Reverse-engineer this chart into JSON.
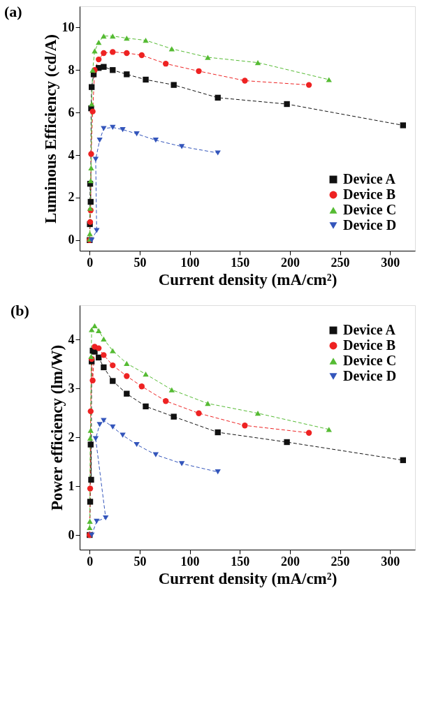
{
  "chart_data": [
    {
      "type": "line",
      "title": "(a)",
      "xlabel": "Current density (mA/cm²)",
      "ylabel": "Luminous Efficiency (cd/A)",
      "xlim": [
        -10,
        325
      ],
      "ylim": [
        -0.5,
        11
      ],
      "xticks": [
        0,
        50,
        100,
        150,
        200,
        250,
        300
      ],
      "yticks": [
        0,
        2,
        4,
        6,
        8,
        10
      ],
      "grid": false,
      "legend": "bottom right",
      "line_style": "dashed",
      "series": [
        {
          "name": "Device A",
          "color": "#111111",
          "marker": "square",
          "x": [
            0,
            0.2,
            0.5,
            1,
            1.5,
            2,
            4,
            9,
            14,
            23,
            37,
            56,
            84,
            128,
            197,
            313
          ],
          "values": [
            0,
            0.75,
            2.65,
            1.8,
            6.2,
            7.2,
            7.8,
            8.1,
            8.15,
            8.0,
            7.8,
            7.55,
            7.3,
            6.7,
            6.4,
            5.4
          ]
        },
        {
          "name": "Device B",
          "color": "#ee2222",
          "marker": "circle",
          "x": [
            0,
            0.5,
            1,
            1.5,
            3,
            5,
            9,
            14,
            23,
            37,
            52,
            76,
            109,
            155,
            219
          ],
          "values": [
            0,
            0.85,
            1.4,
            4.05,
            6.05,
            8.0,
            8.5,
            8.8,
            8.85,
            8.8,
            8.7,
            8.3,
            7.95,
            7.5,
            7.3
          ]
        },
        {
          "name": "Device C",
          "color": "#55bb33",
          "marker": "triangle-up",
          "x": [
            0,
            0.2,
            0.5,
            1,
            1.5,
            2,
            3,
            5,
            9,
            14,
            23,
            37,
            56,
            82,
            118,
            168,
            239
          ],
          "values": [
            0.05,
            0.3,
            1.5,
            2.8,
            3.4,
            6.4,
            8.0,
            8.9,
            9.3,
            9.6,
            9.6,
            9.5,
            9.4,
            9.0,
            8.6,
            8.35,
            7.55
          ]
        },
        {
          "name": "Device D",
          "color": "#3355bb",
          "marker": "triangle-down",
          "x": [
            2,
            7,
            6,
            10,
            14,
            23,
            33,
            47,
            66,
            92,
            128
          ],
          "values": [
            0,
            0.45,
            3.8,
            4.7,
            5.25,
            5.3,
            5.2,
            5.0,
            4.7,
            4.4,
            4.1
          ]
        }
      ]
    },
    {
      "type": "line",
      "title": "(b)",
      "xlabel": "Current density (mA/cm²)",
      "ylabel": "Power efficiency (lm/W)",
      "xlim": [
        -10,
        325
      ],
      "ylim": [
        -0.3,
        4.7
      ],
      "xticks": [
        0,
        50,
        100,
        150,
        200,
        250,
        300
      ],
      "yticks": [
        0,
        1,
        2,
        3,
        4
      ],
      "grid": false,
      "legend": "top right",
      "line_style": "dashed",
      "series": [
        {
          "name": "Device A",
          "color": "#111111",
          "marker": "square",
          "x": [
            0,
            0.5,
            1,
            1.5,
            2,
            3,
            5,
            9,
            14,
            23,
            37,
            56,
            84,
            128,
            197,
            313
          ],
          "values": [
            0,
            0.68,
            1.85,
            1.13,
            3.55,
            3.77,
            3.75,
            3.63,
            3.43,
            3.15,
            2.89,
            2.63,
            2.42,
            2.1,
            1.9,
            1.53
          ]
        },
        {
          "name": "Device B",
          "color": "#ee2222",
          "marker": "circle",
          "x": [
            0,
            0.5,
            1,
            2,
            3,
            5,
            9,
            14,
            23,
            37,
            52,
            76,
            109,
            155,
            219
          ],
          "values": [
            0,
            0.95,
            2.53,
            3.6,
            3.16,
            3.85,
            3.82,
            3.68,
            3.47,
            3.25,
            3.04,
            2.74,
            2.49,
            2.24,
            2.09
          ]
        },
        {
          "name": "Device C",
          "color": "#55bb33",
          "marker": "triangle-up",
          "x": [
            0,
            0.2,
            0.5,
            1,
            1.5,
            2,
            5,
            9,
            14,
            23,
            37,
            56,
            82,
            118,
            168,
            239
          ],
          "values": [
            0.15,
            0.28,
            1.98,
            2.14,
            3.65,
            4.2,
            4.28,
            4.18,
            4.01,
            3.77,
            3.51,
            3.29,
            2.97,
            2.69,
            2.49,
            2.16
          ]
        },
        {
          "name": "Device D",
          "color": "#3355bb",
          "marker": "triangle-down",
          "x": [
            2,
            7,
            16,
            6,
            10,
            14,
            23,
            33,
            47,
            66,
            92,
            128
          ],
          "values": [
            0,
            0.28,
            0.35,
            1.97,
            2.26,
            2.34,
            2.21,
            2.04,
            1.85,
            1.64,
            1.46,
            1.29
          ]
        }
      ]
    }
  ]
}
